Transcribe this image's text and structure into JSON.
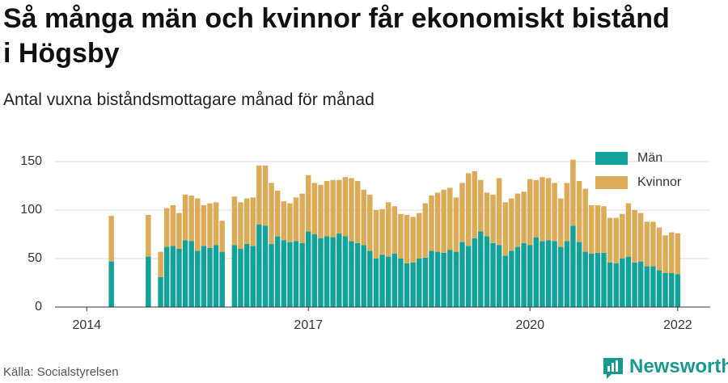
{
  "title": "Så många män och kvinnor får ekonomiskt bistånd i Högsby",
  "subtitle": "Antal vuxna biståndsmottagare månad för månad",
  "source": "Källa: Socialstyrelsen",
  "brand": "Newsworthy",
  "chart_data": {
    "type": "bar",
    "stacked": true,
    "x": [
      2014.333,
      2014.833,
      2015.0,
      2015.083,
      2015.167,
      2015.25,
      2015.333,
      2015.417,
      2015.5,
      2015.583,
      2015.667,
      2015.75,
      2015.833,
      2016.0,
      2016.083,
      2016.167,
      2016.25,
      2016.333,
      2016.417,
      2016.5,
      2016.583,
      2016.667,
      2016.75,
      2016.833,
      2016.917,
      2017.0,
      2017.083,
      2017.167,
      2017.25,
      2017.333,
      2017.417,
      2017.5,
      2017.583,
      2017.667,
      2017.75,
      2017.833,
      2017.917,
      2018.0,
      2018.083,
      2018.167,
      2018.25,
      2018.333,
      2018.417,
      2018.5,
      2018.583,
      2018.667,
      2018.75,
      2018.833,
      2018.917,
      2019.0,
      2019.083,
      2019.167,
      2019.25,
      2019.333,
      2019.417,
      2019.5,
      2019.583,
      2019.667,
      2019.75,
      2019.833,
      2019.917,
      2020.0,
      2020.083,
      2020.167,
      2020.25,
      2020.333,
      2020.417,
      2020.5,
      2020.583,
      2020.667,
      2020.75,
      2020.833,
      2020.917,
      2021.0,
      2021.083,
      2021.167,
      2021.25,
      2021.333,
      2021.417,
      2021.5,
      2021.583,
      2021.667,
      2021.75,
      2021.833,
      2021.917,
      2022.0
    ],
    "series": [
      {
        "name": "Män",
        "color": "#12a29a",
        "values": [
          47,
          52,
          31,
          62,
          63,
          60,
          69,
          68,
          58,
          63,
          61,
          64,
          57,
          64,
          60,
          65,
          63,
          85,
          84,
          65,
          73,
          69,
          67,
          68,
          66,
          78,
          75,
          71,
          73,
          72,
          76,
          73,
          68,
          66,
          64,
          58,
          50,
          54,
          52,
          55,
          50,
          45,
          46,
          50,
          51,
          58,
          57,
          56,
          59,
          57,
          67,
          63,
          71,
          78,
          73,
          66,
          64,
          53,
          58,
          62,
          66,
          64,
          72,
          68,
          69,
          68,
          62,
          68,
          84,
          67,
          57,
          55,
          56,
          56,
          46,
          45,
          50,
          52,
          46,
          47,
          42,
          42,
          38,
          35,
          35,
          34
        ]
      },
      {
        "name": "Kvinnor",
        "color": "#dcab58",
        "values": [
          47,
          43,
          26,
          40,
          42,
          37,
          47,
          47,
          54,
          42,
          46,
          44,
          32,
          50,
          48,
          47,
          50,
          61,
          62,
          63,
          47,
          40,
          40,
          45,
          51,
          58,
          53,
          55,
          57,
          59,
          55,
          61,
          65,
          64,
          57,
          58,
          50,
          47,
          56,
          49,
          46,
          50,
          47,
          47,
          56,
          57,
          61,
          65,
          64,
          56,
          61,
          75,
          69,
          53,
          45,
          50,
          69,
          55,
          54,
          55,
          53,
          68,
          59,
          66,
          64,
          60,
          50,
          60,
          68,
          63,
          65,
          50,
          49,
          48,
          46,
          47,
          46,
          55,
          54,
          50,
          46,
          46,
          44,
          39,
          42,
          42
        ]
      }
    ],
    "xlim": [
      2013.57,
      2022.44
    ],
    "xticks": [
      2014,
      2017,
      2020,
      2022
    ],
    "ylim": [
      0,
      160
    ],
    "yticks": [
      0,
      50,
      100,
      150
    ],
    "grid": true,
    "legend": "top-right"
  }
}
